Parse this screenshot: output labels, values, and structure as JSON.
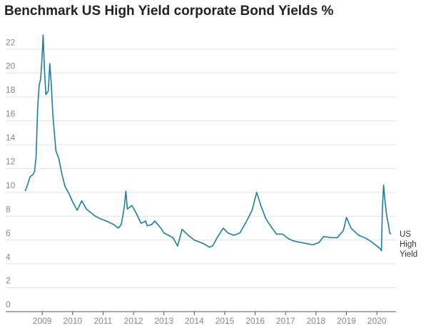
{
  "chart_data": {
    "type": "line",
    "title": "Benchmark US High Yield corporate Bond Yields %",
    "x": [
      2008.44,
      2008.5,
      2008.6,
      2008.7,
      2008.75,
      2008.8,
      2008.85,
      2008.9,
      2008.95,
      2009.0,
      2009.03,
      2009.08,
      2009.12,
      2009.2,
      2009.25,
      2009.3,
      2009.35,
      2009.45,
      2009.55,
      2009.65,
      2009.75,
      2009.9,
      2010.0,
      2010.15,
      2010.3,
      2010.45,
      2010.6,
      2010.75,
      2010.9,
      2011.1,
      2011.35,
      2011.5,
      2011.6,
      2011.7,
      2011.75,
      2011.8,
      2011.95,
      2012.1,
      2012.25,
      2012.4,
      2012.45,
      2012.6,
      2012.7,
      2012.9,
      2013.0,
      2013.3,
      2013.45,
      2013.6,
      2013.8,
      2014.0,
      2014.3,
      2014.5,
      2014.6,
      2014.75,
      2014.95,
      2015.1,
      2015.3,
      2015.5,
      2015.7,
      2015.9,
      2016.05,
      2016.2,
      2016.35,
      2016.5,
      2016.7,
      2016.9,
      2017.1,
      2017.3,
      2017.5,
      2017.7,
      2017.9,
      2018.1,
      2018.25,
      2018.5,
      2018.7,
      2018.9,
      2019.0,
      2019.15,
      2019.4,
      2019.6,
      2019.8,
      2019.95,
      2020.1,
      2020.15,
      2020.18,
      2020.22,
      2020.27,
      2020.32,
      2020.38,
      2020.42,
      2020.47
    ],
    "series": [
      {
        "name": "US High Yield",
        "color": "#1a7fa0",
        "values": [
          10.1,
          10.5,
          11.3,
          11.5,
          11.8,
          13,
          17,
          19,
          19.5,
          21.5,
          23.2,
          20,
          18.2,
          18.5,
          20.8,
          19,
          16.5,
          13.5,
          12.8,
          11.5,
          10.5,
          9.8,
          9.2,
          8.5,
          9.3,
          8.6,
          8.3,
          8.0,
          7.8,
          7.6,
          7.3,
          7.0,
          7.3,
          8.8,
          10.1,
          8.6,
          8.9,
          8.2,
          7.4,
          7.6,
          7.2,
          7.3,
          7.6,
          7.0,
          6.6,
          6.2,
          5.5,
          6.9,
          6.4,
          6.0,
          5.7,
          5.4,
          5.5,
          6.2,
          7.0,
          6.6,
          6.4,
          6.6,
          7.5,
          8.5,
          10.0,
          8.8,
          7.8,
          7.2,
          6.5,
          6.5,
          6.1,
          5.9,
          5.8,
          5.7,
          5.6,
          5.8,
          6.3,
          6.2,
          6.2,
          6.8,
          7.9,
          7.0,
          6.4,
          6.2,
          5.9,
          5.6,
          5.3,
          5.1,
          8.5,
          10.6,
          9.2,
          8.1,
          7.3,
          6.6,
          6.5
        ]
      }
    ],
    "xlim": [
      2008.27,
      2020.63
    ],
    "xticks": [
      2009,
      2010,
      2011,
      2012,
      2013,
      2014,
      2015,
      2016,
      2017,
      2018,
      2019,
      2020
    ],
    "ylim": [
      0,
      23.5
    ],
    "yticks": [
      0,
      2,
      4,
      6,
      8,
      10,
      12,
      14,
      16,
      18,
      20,
      22
    ],
    "grid": true
  }
}
